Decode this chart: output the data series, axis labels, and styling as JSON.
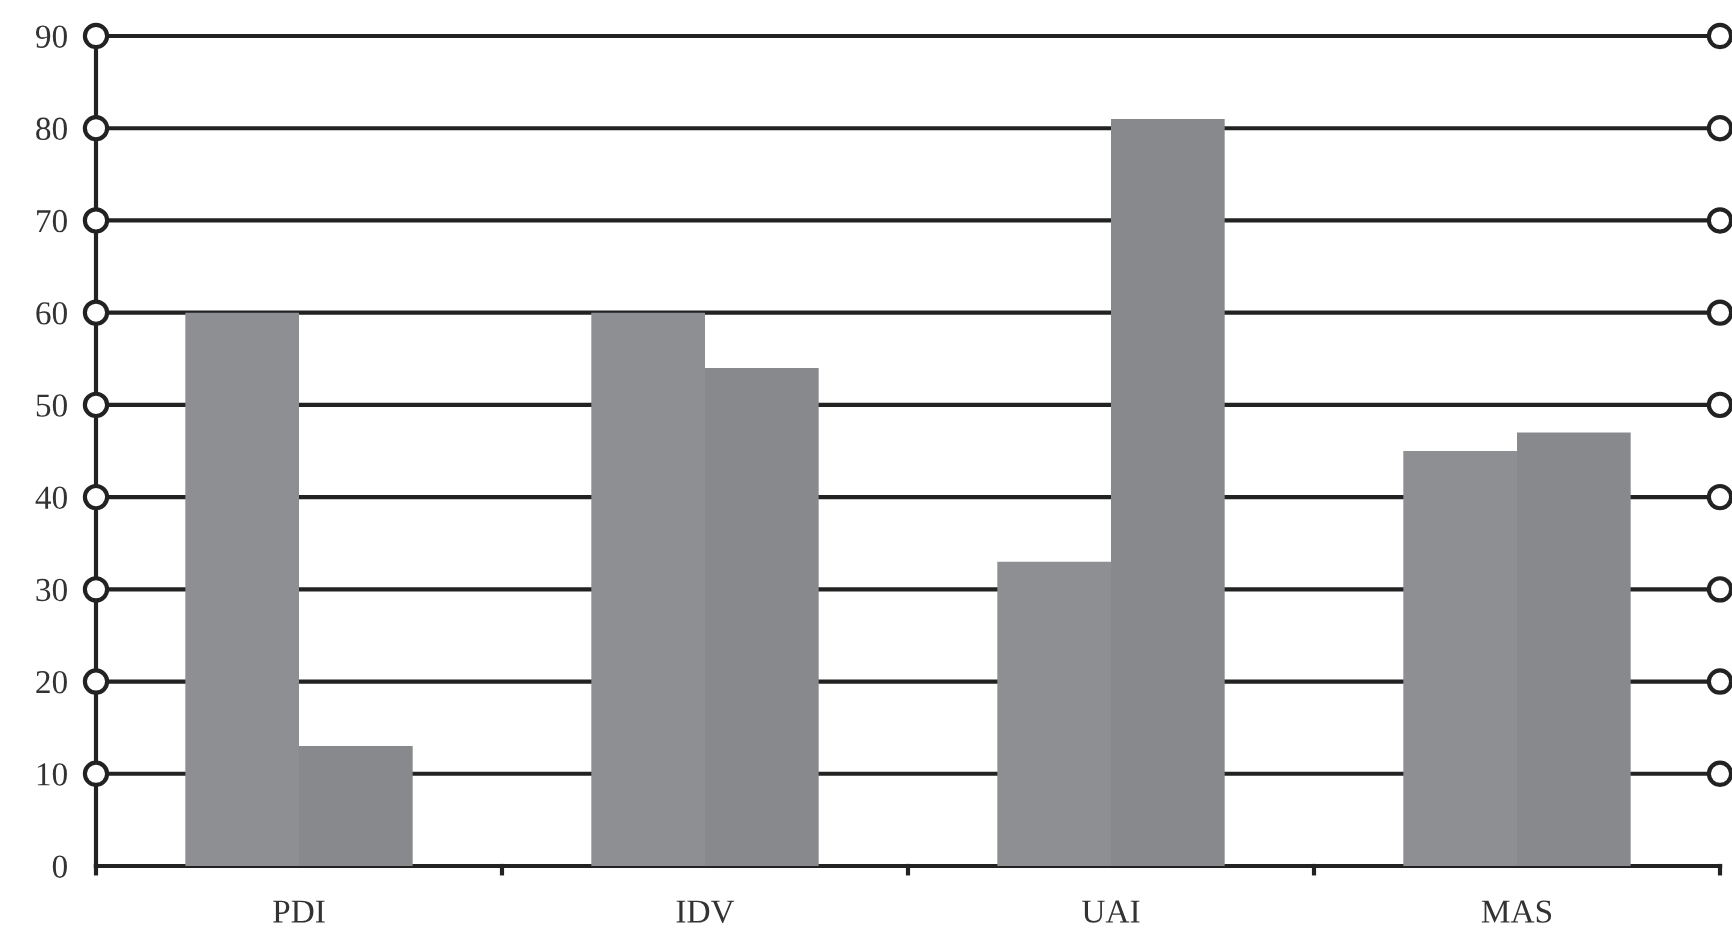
{
  "chart_data": {
    "type": "bar",
    "categories": [
      "PDI",
      "IDV",
      "UAI",
      "MAS"
    ],
    "series": [
      {
        "color": "#8e8f93",
        "values": [
          60,
          60,
          33,
          45
        ]
      },
      {
        "color": "#88898d",
        "values": [
          13,
          54,
          81,
          47
        ]
      }
    ],
    "ylim": [
      0,
      90
    ],
    "yticks": [
      0,
      10,
      20,
      30,
      40,
      50,
      60,
      70,
      80,
      90
    ],
    "grid": "y",
    "legend": false
  }
}
